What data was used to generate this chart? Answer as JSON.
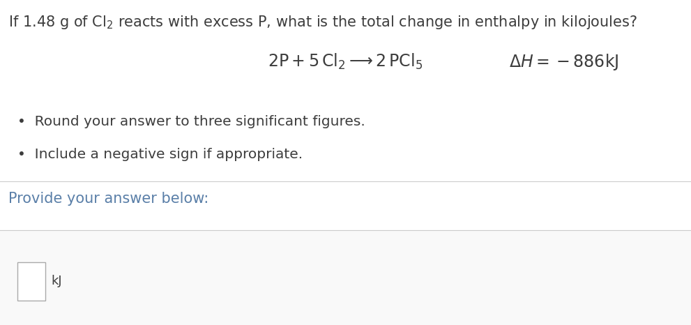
{
  "background_color": "#ffffff",
  "title_text_plain": "If 1.48 g of Cl",
  "title_sub": "2",
  "title_text_plain2": " reacts with excess P, what is the total change in enthalpy in kilojoules?",
  "equation_text": "$2\\mathrm{P} + 5\\,\\mathrm{Cl_2} \\longrightarrow 2\\,\\mathrm{PCl_5}$",
  "delta_h_text": "$\\Delta H = -886\\mathrm{kJ}$",
  "bullet1": "Round your answer to three significant figures.",
  "bullet2": "Include a negative sign if appropriate.",
  "provide_text": "Provide your answer below:",
  "unit_text": "kJ",
  "text_color": "#3d3d3d",
  "title_color": "#3d3d3d",
  "line_color": "#cccccc",
  "box_color": "#ffffff",
  "box_border_color": "#aaaaaa",
  "provide_color": "#5a7fa8",
  "title_fontsize": 15.0,
  "equation_fontsize": 17,
  "bullet_fontsize": 14.5,
  "provide_fontsize": 15,
  "unit_fontsize": 13
}
